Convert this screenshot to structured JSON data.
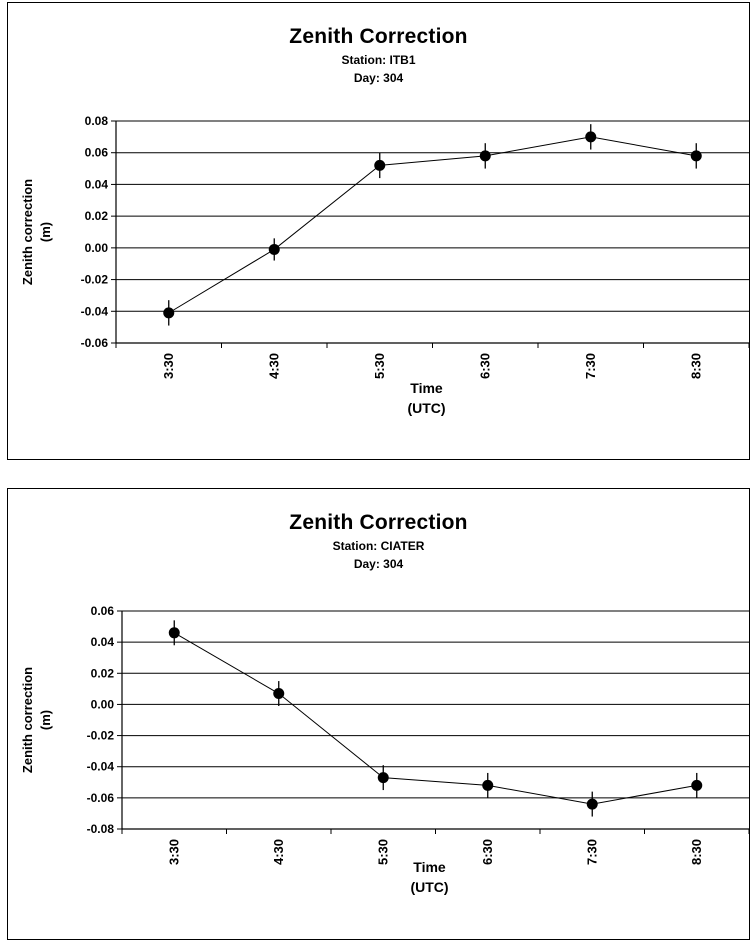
{
  "chart_data": [
    {
      "type": "line",
      "title": "Zenith Correction",
      "subtitle_station": "Station: ITB1",
      "subtitle_day": "Day: 304",
      "xlabel": "Time",
      "xlabel_unit": "(UTC)",
      "ylabel": "Zenith correction",
      "ylabel_unit": "(m)",
      "categories": [
        "3:30",
        "4:30",
        "5:30",
        "6:30",
        "7:30",
        "8:30"
      ],
      "values": [
        -0.041,
        -0.001,
        0.052,
        0.058,
        0.07,
        0.058
      ],
      "error": [
        0.008,
        0.007,
        0.008,
        0.008,
        0.008,
        0.008
      ],
      "ylim": [
        -0.06,
        0.08
      ],
      "yticks": [
        "0.08",
        "0.06",
        "0.04",
        "0.02",
        "0.00",
        "-0.02",
        "-0.04",
        "-0.06"
      ],
      "grid": true,
      "legend": "none"
    },
    {
      "type": "line",
      "title": "Zenith Correction",
      "subtitle_station": "Station: CIATER",
      "subtitle_day": "Day: 304",
      "xlabel": "Time",
      "xlabel_unit": "(UTC)",
      "ylabel": "Zenith correction",
      "ylabel_unit": "(m)",
      "categories": [
        "3:30",
        "4:30",
        "5:30",
        "6:30",
        "7:30",
        "8:30"
      ],
      "values": [
        0.046,
        0.007,
        -0.047,
        -0.052,
        -0.064,
        -0.052
      ],
      "error": [
        0.008,
        0.008,
        0.008,
        0.008,
        0.008,
        0.008
      ],
      "ylim": [
        -0.08,
        0.06
      ],
      "yticks": [
        "0.06",
        "0.04",
        "0.02",
        "0.00",
        "-0.02",
        "-0.04",
        "-0.06",
        "-0.08"
      ],
      "grid": true,
      "legend": "none"
    }
  ]
}
